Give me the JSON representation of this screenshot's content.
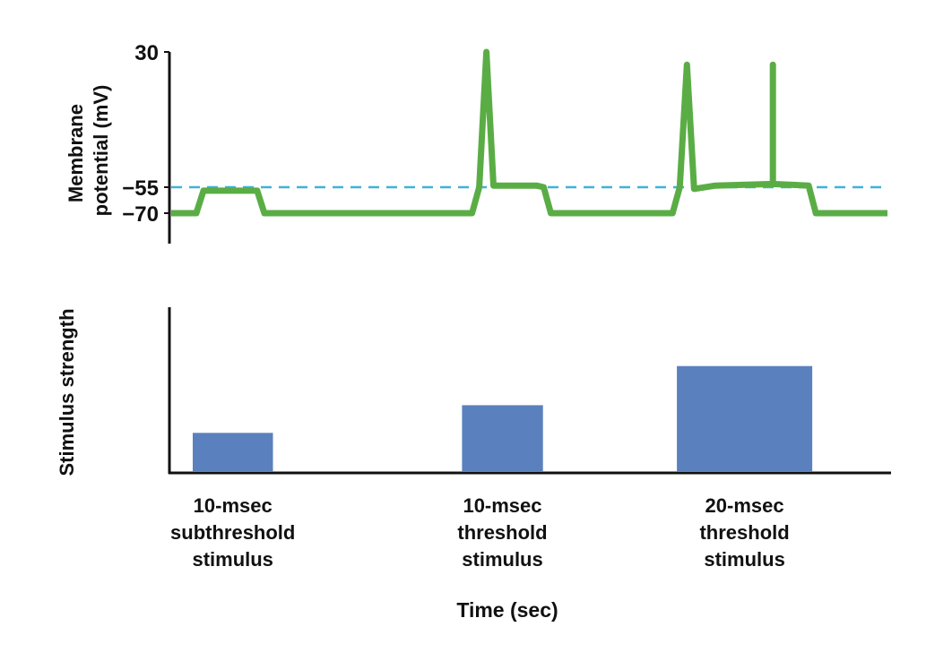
{
  "chart_data": [
    {
      "type": "line",
      "ylabel_lines": [
        "Membrane",
        "potential (mV)"
      ],
      "y_ticks": [
        {
          "value": 30,
          "label": "30"
        },
        {
          "value": -55,
          "label": "−55"
        },
        {
          "value": -70,
          "label": "−70"
        }
      ],
      "ylim": [
        -85,
        30
      ],
      "x_range": [
        0,
        100
      ],
      "threshold": {
        "value": -55,
        "style": "dashed",
        "color": "#3fb3d6"
      },
      "series": [
        {
          "color": "#5aad45",
          "x": [
            0,
            3.5,
            4.5,
            12,
            13,
            14.5,
            42,
            43,
            44,
            45,
            51,
            52,
            53,
            70,
            71,
            72,
            73,
            76,
            84,
            84,
            84,
            89,
            90,
            91,
            100
          ],
          "y": [
            -70,
            -70,
            -57,
            -57,
            -70,
            -70,
            -70,
            -55,
            30,
            -54,
            -54,
            -55,
            -70,
            -70,
            -55,
            22,
            -56,
            -54,
            -53,
            22,
            -53,
            -54,
            -70,
            -70,
            -70
          ]
        }
      ]
    },
    {
      "type": "bar",
      "ylabel": "Stimulus strength",
      "xlabel": "Time (sec)",
      "ylim": [
        0,
        100
      ],
      "bar_color": "#5b80be",
      "bars": [
        {
          "start": 3,
          "end": 14.2,
          "value": 24,
          "label_lines": [
            "10-msec",
            "subthreshold",
            "stimulus"
          ]
        },
        {
          "start": 40.6,
          "end": 51.9,
          "value": 41,
          "label_lines": [
            "10-msec",
            "threshold",
            "stimulus"
          ]
        },
        {
          "start": 70.6,
          "end": 89.5,
          "value": 65,
          "label_lines": [
            "20-msec",
            "threshold",
            "stimulus"
          ]
        }
      ]
    }
  ]
}
